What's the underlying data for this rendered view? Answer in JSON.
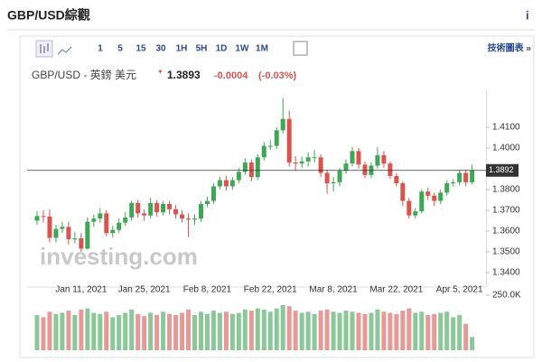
{
  "header": {
    "title": "GBP/USD綜觀",
    "info": "i"
  },
  "toolbar": {
    "intervals": [
      "1",
      "5",
      "15",
      "30",
      "1H",
      "5H",
      "1D",
      "1W",
      "1M"
    ],
    "link": "技術圖表 »"
  },
  "quote": {
    "name": "GBP/USD - 英鎊 美元",
    "price": "1.3893",
    "change": "-0.0004",
    "change_pct": "(-0.03%)"
  },
  "chart_data": {
    "type": "candlestick",
    "watermark": "investing.com",
    "categories": [
      null,
      null,
      null,
      null,
      null,
      null,
      null,
      "Jan 11, 2021",
      null,
      null,
      null,
      null,
      null,
      null,
      null,
      null,
      null,
      "Jan 25, 2021",
      null,
      null,
      null,
      null,
      null,
      null,
      null,
      null,
      null,
      "Feb 8, 2021",
      null,
      null,
      null,
      null,
      null,
      null,
      null,
      null,
      null,
      "Feb 22, 2021",
      null,
      null,
      null,
      null,
      null,
      null,
      null,
      null,
      null,
      "Mar 8, 2021",
      null,
      null,
      null,
      null,
      null,
      null,
      null,
      null,
      null,
      "Mar 22, 2021",
      null,
      null,
      null,
      null,
      null,
      null,
      null,
      null,
      null,
      "Apr 5, 2021",
      null,
      null
    ],
    "open": [
      1.365,
      1.3672,
      1.367,
      1.3567,
      1.361,
      1.362,
      1.356,
      1.3565,
      1.3515,
      1.3645,
      1.366,
      1.3685,
      1.359,
      1.3605,
      1.364,
      1.3665,
      1.3735,
      1.3685,
      1.3675,
      1.3735,
      1.369,
      1.373,
      1.3705,
      1.368,
      1.366,
      1.3655,
      1.366,
      1.373,
      1.3745,
      1.3815,
      1.3845,
      1.3815,
      1.3845,
      1.3885,
      1.393,
      1.386,
      1.3955,
      1.401,
      1.401,
      1.4085,
      1.414,
      1.393,
      1.3925,
      1.3935,
      1.3955,
      1.3955,
      1.388,
      1.383,
      1.3835,
      1.389,
      1.3925,
      1.3985,
      1.392,
      1.387,
      1.3915,
      1.3965,
      1.3925,
      1.3865,
      1.383,
      1.3745,
      1.3675,
      1.3695,
      1.379,
      1.377,
      1.3745,
      1.3785,
      1.383,
      1.3835,
      1.388,
      1.3835
    ],
    "high": [
      1.3695,
      1.37,
      1.3705,
      1.363,
      1.3645,
      1.3645,
      1.3595,
      1.359,
      1.3665,
      1.368,
      1.371,
      1.37,
      1.3625,
      1.366,
      1.369,
      1.3745,
      1.375,
      1.3705,
      1.376,
      1.375,
      1.3745,
      1.3745,
      1.3725,
      1.37,
      1.3685,
      1.368,
      1.3745,
      1.3765,
      1.383,
      1.386,
      1.3865,
      1.386,
      1.3905,
      1.395,
      1.3945,
      1.397,
      1.403,
      1.404,
      1.41,
      1.424,
      1.418,
      1.396,
      1.396,
      1.398,
      1.399,
      1.397,
      1.3895,
      1.386,
      1.3905,
      1.3945,
      1.4005,
      1.4,
      1.3935,
      1.393,
      1.4005,
      1.3985,
      1.3935,
      1.388,
      1.384,
      1.376,
      1.371,
      1.38,
      1.381,
      1.3785,
      1.38,
      1.3845,
      1.385,
      1.3895,
      1.3895,
      1.392
    ],
    "low": [
      1.363,
      1.364,
      1.3545,
      1.3545,
      1.359,
      1.3535,
      1.354,
      1.35,
      1.351,
      1.362,
      1.364,
      1.3575,
      1.357,
      1.359,
      1.3625,
      1.365,
      1.3665,
      1.365,
      1.366,
      1.367,
      1.3675,
      1.368,
      1.366,
      1.364,
      1.357,
      1.363,
      1.3645,
      1.3715,
      1.373,
      1.38,
      1.3795,
      1.38,
      1.383,
      1.387,
      1.384,
      1.3845,
      1.394,
      1.399,
      1.3995,
      1.407,
      1.391,
      1.389,
      1.3905,
      1.391,
      1.393,
      1.386,
      1.378,
      1.379,
      1.3815,
      1.3875,
      1.391,
      1.39,
      1.3855,
      1.3855,
      1.39,
      1.3905,
      1.385,
      1.3815,
      1.372,
      1.366,
      1.366,
      1.3685,
      1.375,
      1.372,
      1.373,
      1.377,
      1.3815,
      1.382,
      1.3815,
      1.3825
    ],
    "close": [
      1.3672,
      1.367,
      1.3567,
      1.361,
      1.362,
      1.356,
      1.3565,
      1.3515,
      1.3645,
      1.366,
      1.3685,
      1.359,
      1.3605,
      1.364,
      1.3665,
      1.3735,
      1.3685,
      1.3675,
      1.3735,
      1.369,
      1.373,
      1.3705,
      1.368,
      1.366,
      1.3655,
      1.366,
      1.373,
      1.3745,
      1.3815,
      1.3845,
      1.3815,
      1.3845,
      1.3885,
      1.393,
      1.386,
      1.3955,
      1.401,
      1.401,
      1.4085,
      1.414,
      1.393,
      1.3925,
      1.3935,
      1.3955,
      1.3955,
      1.388,
      1.383,
      1.3835,
      1.389,
      1.3925,
      1.3985,
      1.392,
      1.387,
      1.3915,
      1.3965,
      1.3925,
      1.3865,
      1.383,
      1.3745,
      1.3675,
      1.3695,
      1.379,
      1.377,
      1.3745,
      1.3785,
      1.383,
      1.3835,
      1.388,
      1.3835,
      1.3893
    ],
    "volume": [
      160000,
      150000,
      175000,
      165000,
      170000,
      180000,
      160000,
      185000,
      190000,
      170000,
      165000,
      175000,
      150000,
      160000,
      170000,
      185000,
      165000,
      155000,
      170000,
      160000,
      175000,
      165000,
      160000,
      170000,
      185000,
      160000,
      175000,
      165000,
      180000,
      170000,
      175000,
      165000,
      170000,
      185000,
      180000,
      190000,
      185000,
      175000,
      190000,
      205000,
      200000,
      180000,
      170000,
      175000,
      165000,
      180000,
      185000,
      175000,
      170000,
      180000,
      175000,
      170000,
      165000,
      170000,
      185000,
      175000,
      170000,
      165000,
      180000,
      190000,
      170000,
      175000,
      160000,
      165000,
      170000,
      175000,
      150000,
      160000,
      120000,
      60000
    ],
    "up_color": "#3fa655",
    "down_color": "#d9534f",
    "volume_up_color": "#8cc79a",
    "volume_down_color": "#e59a98",
    "ylim": [
      1.3343,
      1.4278
    ],
    "yticks": [
      {
        "value": 1.34,
        "label": "1.3400"
      },
      {
        "value": 1.35,
        "label": "1.3500"
      },
      {
        "value": 1.36,
        "label": "1.3600"
      },
      {
        "value": 1.37,
        "label": "1.3700"
      },
      {
        "value": 1.38,
        "label": "1.3800"
      },
      {
        "value": 1.4,
        "label": "1.4000"
      },
      {
        "value": 1.41,
        "label": "1.4100"
      }
    ],
    "price_line": 1.3892,
    "volume_ylim": [
      0,
      250000
    ],
    "volume_yticks": [
      {
        "value": 250000,
        "label": "250.0K"
      }
    ]
  }
}
